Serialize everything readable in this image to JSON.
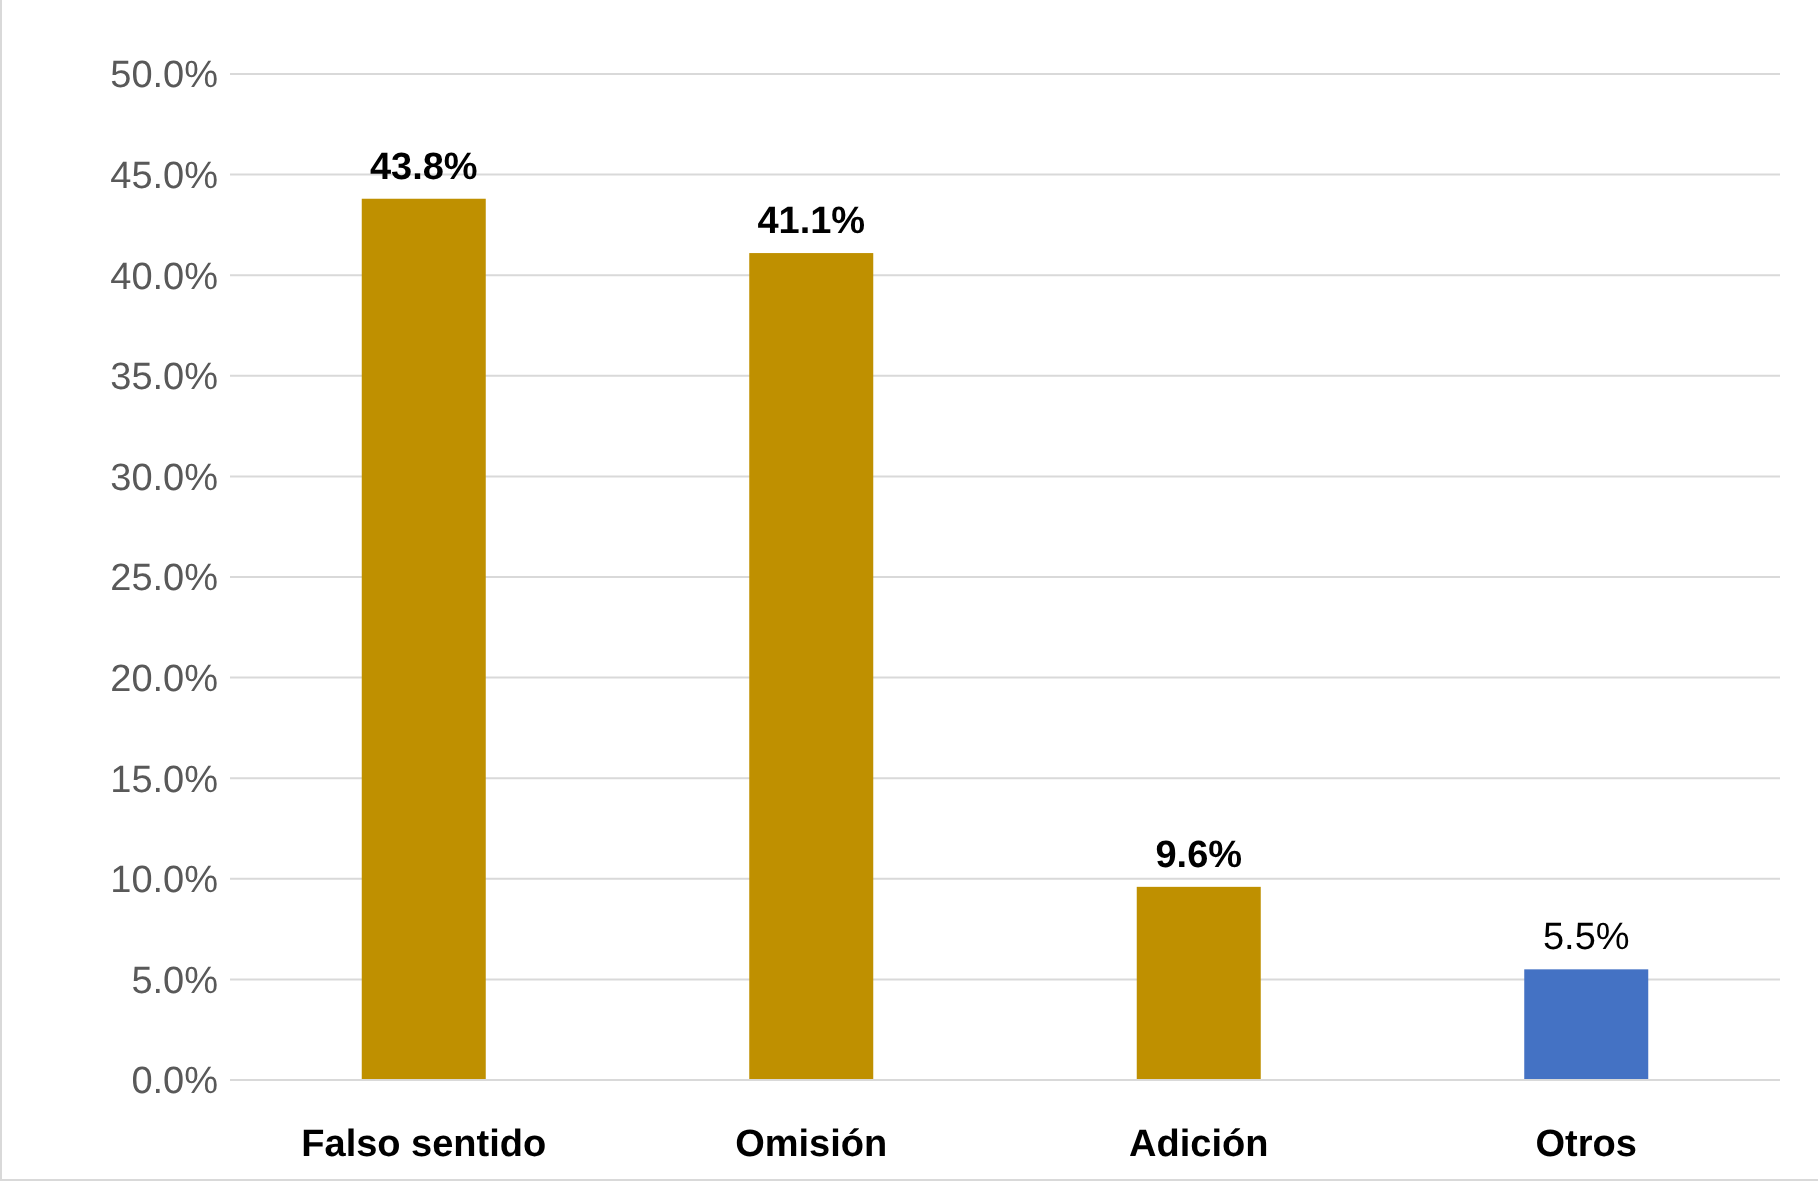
{
  "chart_data": {
    "type": "bar",
    "categories": [
      "Falso sentido",
      "Omisión",
      "Adición",
      "Otros"
    ],
    "values": [
      43.8,
      41.1,
      9.6,
      5.5
    ],
    "colors": [
      "#bf9000",
      "#bf9000",
      "#bf9000",
      "#4472c4"
    ],
    "value_labels": [
      "43.8%",
      "41.1%",
      "9.6%",
      "5.5%"
    ],
    "ylim": [
      0,
      50
    ],
    "yticks": [
      {
        "value": 0,
        "label": "0.0%"
      },
      {
        "value": 5,
        "label": "5.0%"
      },
      {
        "value": 10,
        "label": "10.0%"
      },
      {
        "value": 15,
        "label": "15.0%"
      },
      {
        "value": 20,
        "label": "20.0%"
      },
      {
        "value": 25,
        "label": "25.0%"
      },
      {
        "value": 30,
        "label": "30.0%"
      },
      {
        "value": 35,
        "label": "35.0%"
      },
      {
        "value": 40,
        "label": "40.0%"
      },
      {
        "value": 45,
        "label": "45.0%"
      },
      {
        "value": 50,
        "label": "50.0%"
      }
    ],
    "grid": "y"
  }
}
